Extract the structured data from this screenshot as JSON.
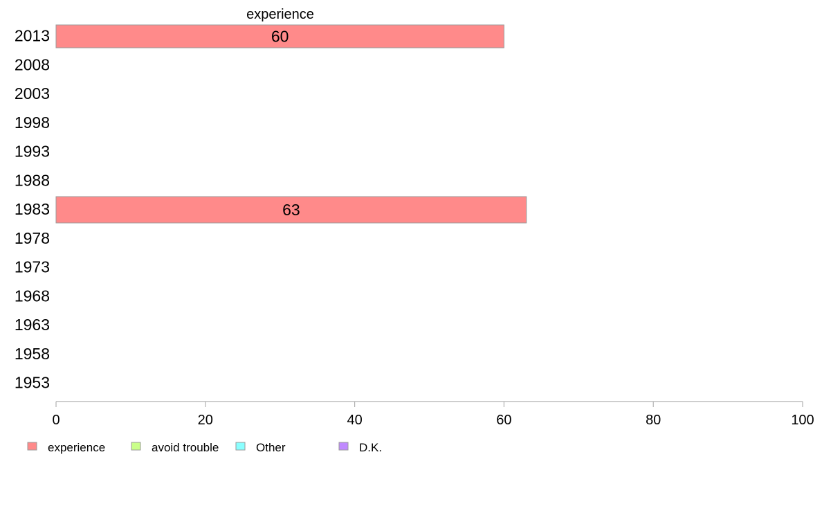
{
  "chart_data": {
    "type": "bar",
    "orientation": "horizontal",
    "stacked": true,
    "categories": [
      "2013",
      "2008",
      "2003",
      "1998",
      "1993",
      "1988",
      "1983",
      "1978",
      "1973",
      "1968",
      "1963",
      "1958",
      "1953"
    ],
    "series": [
      {
        "name": "experience",
        "color": "#ff8a8a",
        "values": [
          60,
          null,
          null,
          null,
          null,
          null,
          63,
          null,
          null,
          null,
          null,
          null,
          null
        ]
      },
      {
        "name": "avoid trouble",
        "color": "#caff8a",
        "values": [
          null,
          null,
          null,
          null,
          null,
          null,
          null,
          null,
          null,
          null,
          null,
          null,
          null
        ]
      },
      {
        "name": "Other",
        "color": "#8affff",
        "values": [
          null,
          null,
          null,
          null,
          null,
          null,
          null,
          null,
          null,
          null,
          null,
          null,
          null
        ]
      },
      {
        "name": "D.K.",
        "color": "#c08aff",
        "values": [
          null,
          null,
          null,
          null,
          null,
          null,
          null,
          null,
          null,
          null,
          null,
          null,
          null
        ]
      }
    ],
    "top_label": "experience",
    "xlim": [
      0,
      100
    ],
    "xticks": [
      0,
      20,
      40,
      60,
      80,
      100
    ],
    "legend_position": "bottom-left",
    "grid": false
  }
}
